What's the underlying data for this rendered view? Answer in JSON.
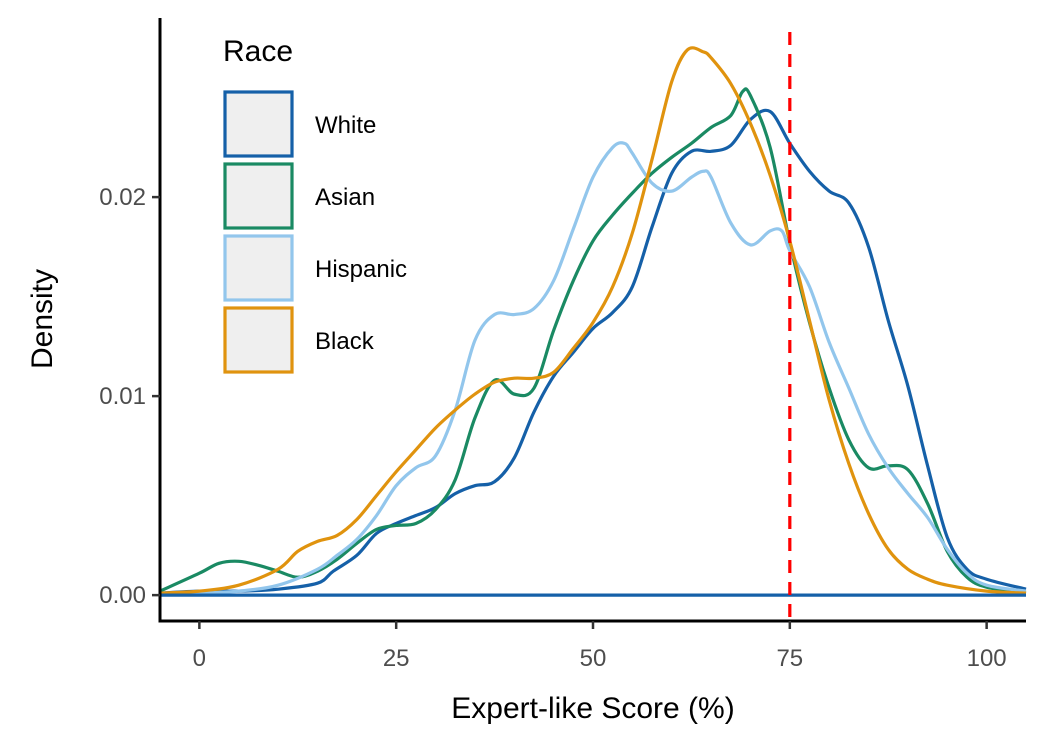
{
  "chart_data": {
    "type": "line",
    "title": "",
    "xlabel": "Expert-like Score (%)",
    "ylabel": "Density",
    "xlim": [
      -5,
      105
    ],
    "ylim": [
      -0.0013,
      0.029
    ],
    "x_ticks": [
      0,
      25,
      50,
      75,
      100
    ],
    "x_tick_labels": [
      "0",
      "25",
      "50",
      "75",
      "100"
    ],
    "y_ticks": [
      0,
      0.01,
      0.02
    ],
    "y_tick_labels": [
      "0.00",
      "0.01",
      "0.02"
    ],
    "grid": false,
    "legend": {
      "title": "Race",
      "position": "top-left",
      "entries": [
        "White",
        "Asian",
        "Hispanic",
        "Black"
      ]
    },
    "reference_line": {
      "x": 75,
      "color": "#ff0000",
      "style": "dashed"
    },
    "baseline": {
      "y": 0,
      "color": "#1560a8"
    },
    "series": [
      {
        "name": "White",
        "color": "#1560a8",
        "points": [
          [
            -5,
            0.0001
          ],
          [
            0,
            0.0002
          ],
          [
            5,
            0.0002
          ],
          [
            10,
            0.0003
          ],
          [
            15,
            0.0006
          ],
          [
            17,
            0.0012
          ],
          [
            20,
            0.002
          ],
          [
            22.5,
            0.0031
          ],
          [
            25,
            0.0036
          ],
          [
            27.5,
            0.004
          ],
          [
            30,
            0.0044
          ],
          [
            32.5,
            0.0051
          ],
          [
            35,
            0.0055
          ],
          [
            37.5,
            0.0057
          ],
          [
            40,
            0.0069
          ],
          [
            42.5,
            0.0092
          ],
          [
            45,
            0.011
          ],
          [
            47.5,
            0.0122
          ],
          [
            50,
            0.0134
          ],
          [
            52.5,
            0.0142
          ],
          [
            55,
            0.0155
          ],
          [
            57.5,
            0.0185
          ],
          [
            60,
            0.0212
          ],
          [
            62.5,
            0.0223
          ],
          [
            65,
            0.0223
          ],
          [
            67.5,
            0.0226
          ],
          [
            70,
            0.0239
          ],
          [
            72.5,
            0.0243
          ],
          [
            75,
            0.0227
          ],
          [
            77.5,
            0.0213
          ],
          [
            80,
            0.0203
          ],
          [
            82.5,
            0.0197
          ],
          [
            85,
            0.0175
          ],
          [
            87.5,
            0.0138
          ],
          [
            90,
            0.0105
          ],
          [
            92.5,
            0.0065
          ],
          [
            95,
            0.0029
          ],
          [
            97.5,
            0.0013
          ],
          [
            100,
            0.0008
          ],
          [
            105,
            0.0003
          ]
        ]
      },
      {
        "name": "Asian",
        "color": "#1a8a63",
        "points": [
          [
            -5,
            0.0002
          ],
          [
            0,
            0.0011
          ],
          [
            2.5,
            0.0016
          ],
          [
            5,
            0.0017
          ],
          [
            7.5,
            0.0015
          ],
          [
            10,
            0.0012
          ],
          [
            12.5,
            0.0009
          ],
          [
            15,
            0.0012
          ],
          [
            17.5,
            0.0018
          ],
          [
            20,
            0.0026
          ],
          [
            22.5,
            0.0033
          ],
          [
            25,
            0.0035
          ],
          [
            27.5,
            0.0036
          ],
          [
            30,
            0.0043
          ],
          [
            32.5,
            0.0058
          ],
          [
            35,
            0.0089
          ],
          [
            37.5,
            0.0108
          ],
          [
            40,
            0.0101
          ],
          [
            42.5,
            0.0104
          ],
          [
            45,
            0.0133
          ],
          [
            47.5,
            0.0158
          ],
          [
            50,
            0.0178
          ],
          [
            52.5,
            0.0191
          ],
          [
            55,
            0.0202
          ],
          [
            57.5,
            0.0212
          ],
          [
            60,
            0.022
          ],
          [
            62.5,
            0.0227
          ],
          [
            65,
            0.0235
          ],
          [
            67.5,
            0.0241
          ],
          [
            69,
            0.0253
          ],
          [
            70,
            0.0251
          ],
          [
            72.5,
            0.0225
          ],
          [
            75,
            0.0177
          ],
          [
            77.5,
            0.0137
          ],
          [
            80,
            0.0104
          ],
          [
            82.5,
            0.0078
          ],
          [
            85,
            0.0064
          ],
          [
            87.5,
            0.0065
          ],
          [
            90,
            0.0063
          ],
          [
            92.5,
            0.0046
          ],
          [
            95,
            0.0022
          ],
          [
            97.5,
            0.0009
          ],
          [
            100,
            0.0004
          ],
          [
            105,
            0.0001
          ]
        ]
      },
      {
        "name": "Hispanic",
        "color": "#92c6ec",
        "points": [
          [
            -5,
            0.0001
          ],
          [
            0,
            0.0001
          ],
          [
            5,
            0.0002
          ],
          [
            10,
            0.0005
          ],
          [
            15,
            0.0013
          ],
          [
            17.5,
            0.002
          ],
          [
            20,
            0.0028
          ],
          [
            22.5,
            0.004
          ],
          [
            25,
            0.0055
          ],
          [
            27.5,
            0.0064
          ],
          [
            30,
            0.007
          ],
          [
            32.5,
            0.0093
          ],
          [
            35,
            0.0128
          ],
          [
            37.5,
            0.0141
          ],
          [
            40,
            0.0141
          ],
          [
            42.5,
            0.0144
          ],
          [
            45,
            0.0158
          ],
          [
            47.5,
            0.0184
          ],
          [
            50,
            0.021
          ],
          [
            52.5,
            0.0225
          ],
          [
            54,
            0.0227
          ],
          [
            55,
            0.0222
          ],
          [
            57.5,
            0.0207
          ],
          [
            60,
            0.0203
          ],
          [
            62.5,
            0.021
          ],
          [
            64,
            0.0213
          ],
          [
            65,
            0.021
          ],
          [
            67.5,
            0.0187
          ],
          [
            70,
            0.0176
          ],
          [
            72.5,
            0.0183
          ],
          [
            74,
            0.0183
          ],
          [
            75,
            0.0173
          ],
          [
            77.5,
            0.0155
          ],
          [
            80,
            0.0127
          ],
          [
            82.5,
            0.0104
          ],
          [
            85,
            0.0081
          ],
          [
            87.5,
            0.0064
          ],
          [
            90,
            0.0051
          ],
          [
            92.5,
            0.0039
          ],
          [
            95,
            0.0023
          ],
          [
            97.5,
            0.0011
          ],
          [
            100,
            0.0005
          ],
          [
            105,
            0.0002
          ]
        ]
      },
      {
        "name": "Black",
        "color": "#e0930e",
        "points": [
          [
            -5,
            0.0001
          ],
          [
            0,
            0.0002
          ],
          [
            5,
            0.0005
          ],
          [
            10,
            0.0013
          ],
          [
            12.5,
            0.0022
          ],
          [
            15,
            0.0027
          ],
          [
            17.5,
            0.003
          ],
          [
            20,
            0.0038
          ],
          [
            22.5,
            0.005
          ],
          [
            25,
            0.0062
          ],
          [
            27.5,
            0.0073
          ],
          [
            30,
            0.0084
          ],
          [
            32.5,
            0.0093
          ],
          [
            35,
            0.0101
          ],
          [
            37.5,
            0.0107
          ],
          [
            40,
            0.0109
          ],
          [
            42.5,
            0.0109
          ],
          [
            45,
            0.0112
          ],
          [
            47.5,
            0.0124
          ],
          [
            50,
            0.0137
          ],
          [
            52.5,
            0.0155
          ],
          [
            55,
            0.0182
          ],
          [
            57.5,
            0.0219
          ],
          [
            60,
            0.0258
          ],
          [
            62,
            0.0274
          ],
          [
            64,
            0.0273
          ],
          [
            65,
            0.027
          ],
          [
            67.5,
            0.0257
          ],
          [
            70,
            0.0237
          ],
          [
            72.5,
            0.0211
          ],
          [
            75,
            0.0178
          ],
          [
            77.5,
            0.0138
          ],
          [
            80,
            0.0098
          ],
          [
            82.5,
            0.0066
          ],
          [
            85,
            0.0041
          ],
          [
            87.5,
            0.0023
          ],
          [
            90,
            0.0013
          ],
          [
            92.5,
            0.0008
          ],
          [
            95,
            0.0005
          ],
          [
            100,
            0.0002
          ],
          [
            105,
            0.0001
          ]
        ]
      }
    ]
  }
}
